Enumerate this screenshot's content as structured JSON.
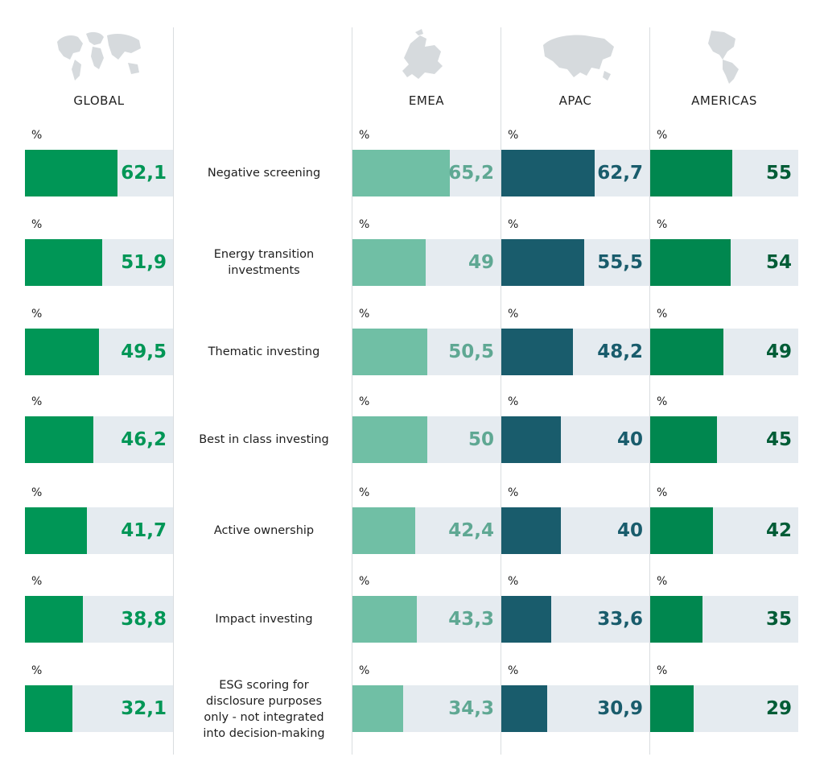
{
  "chart_data": {
    "type": "bar",
    "unit_label": "%",
    "regions": [
      {
        "key": "global",
        "label": "GLOBAL",
        "icon": "world-map-icon",
        "fill_color": "#009656",
        "text_color": "#009656",
        "values": [
          62.1,
          51.9,
          49.5,
          46.2,
          41.7,
          38.8,
          32.1
        ],
        "labels": [
          "62,1",
          "51,9",
          "49,5",
          "46,2",
          "41,7",
          "38,8",
          "32,1"
        ]
      },
      {
        "key": "emea",
        "label": "EMEA",
        "icon": "europe-map-icon",
        "fill_color": "#70bfa5",
        "text_color": "#5fa893",
        "values": [
          65.2,
          49,
          50.5,
          50,
          42.4,
          43.3,
          34.3
        ],
        "labels": [
          "65,2",
          "49",
          "50,5",
          "50",
          "42,4",
          "43,3",
          "34,3"
        ]
      },
      {
        "key": "apac",
        "label": "APAC",
        "icon": "asia-map-icon",
        "fill_color": "#195c6c",
        "text_color": "#195c6c",
        "values": [
          62.7,
          55.5,
          48.2,
          40,
          40,
          33.6,
          30.9
        ],
        "labels": [
          "62,7",
          "55,5",
          "48,2",
          "40",
          "40",
          "33,6",
          "30,9"
        ]
      },
      {
        "key": "americas",
        "label": "AMERICAS",
        "icon": "americas-map-icon",
        "fill_color": "#00874f",
        "text_color": "#005c36",
        "values": [
          55,
          54,
          49,
          45,
          42,
          35,
          29
        ],
        "labels": [
          "55",
          "54",
          "49",
          "45",
          "42",
          "35",
          "29"
        ]
      }
    ],
    "categories": [
      "Negative screening",
      "Energy transition investments",
      "Thematic investing",
      "Best in class investing",
      "Active ownership",
      "Impact investing",
      "ESG scoring for disclosure purposes only - not integrated into decision-making"
    ],
    "category_lines": [
      [
        "Negative screening"
      ],
      [
        "Energy transition",
        "investments"
      ],
      [
        "Thematic investing"
      ],
      [
        "Best in class investing"
      ],
      [
        "Active ownership"
      ],
      [
        "Impact investing"
      ],
      [
        "ESG scoring for",
        "disclosure purposes",
        "only - not integrated",
        "into decision-making"
      ]
    ],
    "xlim": [
      0,
      100
    ]
  }
}
